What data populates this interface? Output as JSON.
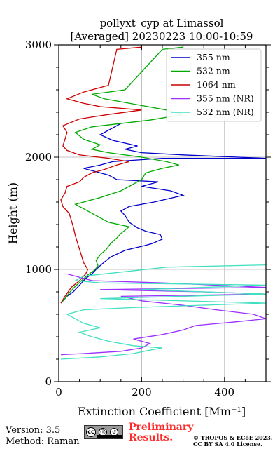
{
  "chart_data": {
    "type": "line",
    "title_line1": "pollyxt_cyp at Limassol",
    "title_line2": "[Averaged] 20230223 10:00-10:59",
    "xlabel": "Extinction Coefficient [Mm⁻¹]",
    "ylabel": "Height (m)",
    "xlim": [
      0,
      500
    ],
    "ylim": [
      0,
      3000
    ],
    "xticks": [
      0,
      200,
      400
    ],
    "yticks": [
      0,
      1000,
      2000,
      3000
    ],
    "grid": true,
    "legend_position": "top-right",
    "series": [
      {
        "name": "355 nm",
        "color": "#0000cc",
        "points": [
          [
            5,
            700
          ],
          [
            20,
            760
          ],
          [
            35,
            800
          ],
          [
            50,
            860
          ],
          [
            65,
            920
          ],
          [
            80,
            960
          ],
          [
            90,
            1000
          ],
          [
            105,
            1050
          ],
          [
            125,
            1110
          ],
          [
            160,
            1170
          ],
          [
            205,
            1210
          ],
          [
            225,
            1230
          ],
          [
            250,
            1270
          ],
          [
            245,
            1310
          ],
          [
            210,
            1340
          ],
          [
            190,
            1370
          ],
          [
            170,
            1420
          ],
          [
            160,
            1480
          ],
          [
            150,
            1520
          ],
          [
            170,
            1560
          ],
          [
            230,
            1600
          ],
          [
            300,
            1660
          ],
          [
            270,
            1700
          ],
          [
            200,
            1740
          ],
          [
            240,
            1780
          ],
          [
            140,
            1800
          ],
          [
            120,
            1840
          ],
          [
            90,
            1870
          ],
          [
            60,
            1900
          ],
          [
            100,
            1930
          ],
          [
            130,
            1960
          ],
          [
            250,
            1990
          ],
          [
            500,
            1990
          ],
          [
            300,
            2020
          ],
          [
            200,
            2040
          ],
          [
            160,
            2070
          ],
          [
            190,
            2100
          ],
          [
            130,
            2150
          ],
          [
            100,
            2200
          ],
          [
            130,
            2260
          ],
          [
            150,
            2300
          ]
        ]
      },
      {
        "name": "532 nm",
        "color": "#00aa00",
        "points": [
          [
            8,
            710
          ],
          [
            15,
            740
          ],
          [
            25,
            790
          ],
          [
            40,
            850
          ],
          [
            55,
            900
          ],
          [
            70,
            950
          ],
          [
            85,
            990
          ],
          [
            95,
            1030
          ],
          [
            90,
            1080
          ],
          [
            100,
            1130
          ],
          [
            115,
            1180
          ],
          [
            125,
            1230
          ],
          [
            140,
            1280
          ],
          [
            150,
            1320
          ],
          [
            170,
            1380
          ],
          [
            120,
            1420
          ],
          [
            90,
            1480
          ],
          [
            60,
            1540
          ],
          [
            40,
            1580
          ],
          [
            100,
            1640
          ],
          [
            150,
            1700
          ],
          [
            180,
            1760
          ],
          [
            200,
            1800
          ],
          [
            210,
            1860
          ],
          [
            250,
            1900
          ],
          [
            290,
            1930
          ],
          [
            260,
            1960
          ],
          [
            200,
            2000
          ],
          [
            120,
            2040
          ],
          [
            80,
            2070
          ],
          [
            100,
            2110
          ],
          [
            60,
            2160
          ],
          [
            40,
            2220
          ],
          [
            80,
            2270
          ],
          [
            220,
            2330
          ],
          [
            300,
            2380
          ],
          [
            260,
            2420
          ],
          [
            200,
            2460
          ],
          [
            110,
            2520
          ],
          [
            80,
            2560
          ],
          [
            160,
            2600
          ],
          [
            250,
            2960
          ],
          [
            300,
            2980
          ]
        ]
      },
      {
        "name": "1064 nm",
        "color": "#cc0000",
        "points": [
          [
            5,
            700
          ],
          [
            15,
            760
          ],
          [
            30,
            840
          ],
          [
            50,
            900
          ],
          [
            65,
            960
          ],
          [
            70,
            1000
          ],
          [
            60,
            1060
          ],
          [
            55,
            1120
          ],
          [
            50,
            1180
          ],
          [
            45,
            1240
          ],
          [
            40,
            1300
          ],
          [
            35,
            1380
          ],
          [
            30,
            1440
          ],
          [
            25,
            1500
          ],
          [
            10,
            1560
          ],
          [
            5,
            1620
          ],
          [
            15,
            1680
          ],
          [
            20,
            1740
          ],
          [
            50,
            1780
          ],
          [
            60,
            1820
          ],
          [
            80,
            1860
          ],
          [
            110,
            1890
          ],
          [
            140,
            1930
          ],
          [
            170,
            1960
          ],
          [
            120,
            1990
          ],
          [
            50,
            2020
          ],
          [
            20,
            2060
          ],
          [
            10,
            2100
          ],
          [
            15,
            2160
          ],
          [
            20,
            2220
          ],
          [
            10,
            2280
          ],
          [
            50,
            2340
          ],
          [
            120,
            2380
          ],
          [
            200,
            2420
          ],
          [
            100,
            2450
          ],
          [
            60,
            2480
          ],
          [
            20,
            2520
          ],
          [
            60,
            2580
          ],
          [
            120,
            2640
          ],
          [
            140,
            2960
          ],
          [
            200,
            2980
          ]
        ]
      },
      {
        "name": "355 nm (NR)",
        "color": "#9b30ff",
        "points": [
          [
            5,
            240
          ],
          [
            60,
            250
          ],
          [
            150,
            270
          ],
          [
            200,
            300
          ],
          [
            220,
            340
          ],
          [
            180,
            380
          ],
          [
            250,
            420
          ],
          [
            300,
            460
          ],
          [
            330,
            500
          ],
          [
            420,
            530
          ],
          [
            500,
            560
          ],
          [
            470,
            600
          ],
          [
            380,
            640
          ],
          [
            300,
            680
          ],
          [
            200,
            720
          ],
          [
            150,
            760
          ],
          [
            500,
            780
          ],
          [
            350,
            800
          ],
          [
            100,
            820
          ],
          [
            500,
            840
          ],
          [
            250,
            880
          ],
          [
            80,
            900
          ],
          [
            40,
            940
          ],
          [
            20,
            960
          ]
        ]
      },
      {
        "name": "532 nm (NR)",
        "color": "#40e0c0",
        "points": [
          [
            5,
            200
          ],
          [
            100,
            220
          ],
          [
            180,
            250
          ],
          [
            220,
            280
          ],
          [
            250,
            300
          ],
          [
            180,
            320
          ],
          [
            120,
            360
          ],
          [
            80,
            400
          ],
          [
            50,
            440
          ],
          [
            100,
            480
          ],
          [
            60,
            520
          ],
          [
            40,
            560
          ],
          [
            20,
            600
          ],
          [
            60,
            640
          ],
          [
            180,
            660
          ],
          [
            500,
            700
          ],
          [
            100,
            740
          ],
          [
            500,
            780
          ],
          [
            200,
            820
          ],
          [
            500,
            860
          ],
          [
            100,
            880
          ],
          [
            40,
            900
          ],
          [
            60,
            940
          ],
          [
            260,
            1020
          ],
          [
            500,
            1040
          ]
        ]
      }
    ]
  },
  "footer": {
    "version": "Version: 3.5",
    "method": "Method: Raman",
    "preliminary_line1": "Preliminary",
    "preliminary_line2": "Results.",
    "copyright_line1": "© TROPOS & ECoE 2023.",
    "copyright_line2": "CC BY SA 4.0 License.",
    "license_badge": {
      "left": "cc",
      "mid": "ⓘ",
      "right": "↺"
    }
  }
}
